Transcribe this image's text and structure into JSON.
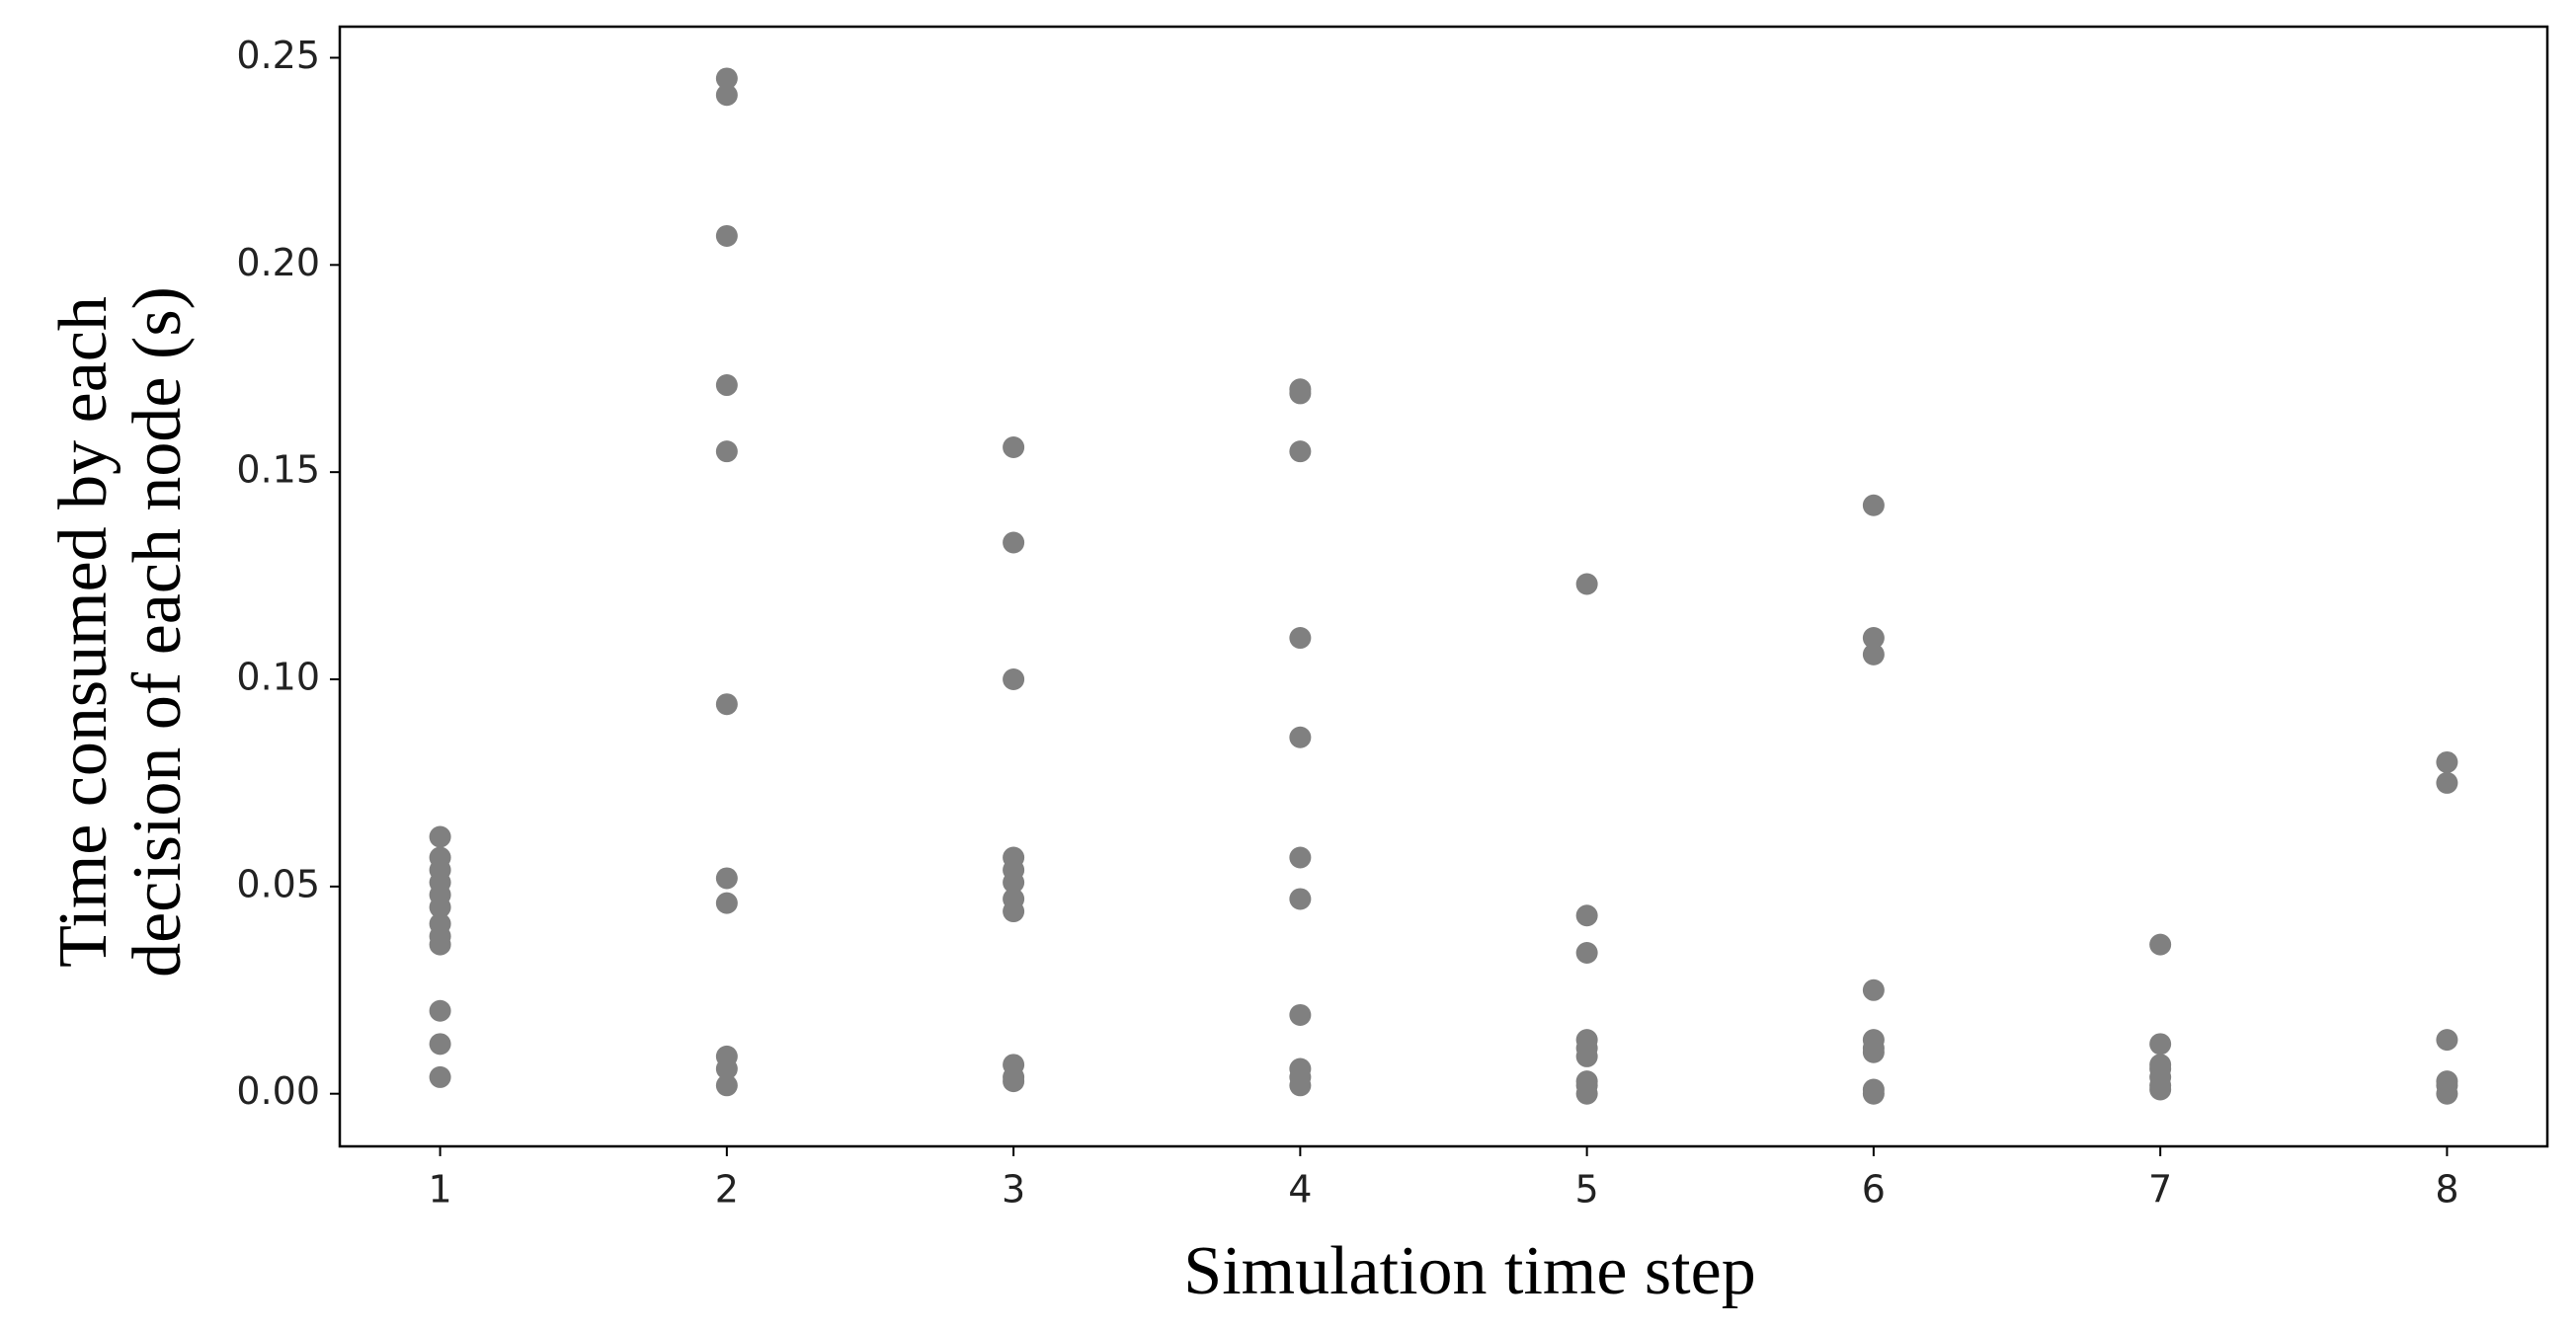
{
  "chart_data": {
    "type": "scatter",
    "xlabel": "Simulation time step",
    "ylabel": [
      "Time consumed by each",
      "decision of each node (s)"
    ],
    "color": "#808080",
    "xlim": [
      0.65,
      8.35
    ],
    "ylim": [
      -0.0127,
      0.2575
    ],
    "xticks": [
      1,
      2,
      3,
      4,
      5,
      6,
      7,
      8
    ],
    "yticks": [
      {
        "value": 0,
        "label": "0.00"
      },
      {
        "value": 0.05,
        "label": "0.05"
      },
      {
        "value": 0.1,
        "label": "0.10"
      },
      {
        "value": 0.15,
        "label": "0.15"
      },
      {
        "value": 0.2,
        "label": "0.20"
      },
      {
        "value": 0.25,
        "label": "0.25"
      }
    ],
    "x": [
      1,
      1,
      1,
      1,
      1,
      1,
      1,
      1,
      1,
      1,
      1,
      1,
      2,
      2,
      2,
      2,
      2,
      2,
      2,
      2,
      2,
      2,
      2,
      3,
      3,
      3,
      3,
      3,
      3,
      3,
      3,
      3,
      3,
      3,
      4,
      4,
      4,
      4,
      4,
      4,
      4,
      4,
      4,
      4,
      4,
      5,
      5,
      5,
      5,
      5,
      5,
      5,
      5,
      5,
      6,
      6,
      6,
      6,
      6,
      6,
      6,
      6,
      6,
      7,
      7,
      7,
      7,
      7,
      7,
      7,
      8,
      8,
      8,
      8,
      8,
      8
    ],
    "values": [
      0.062,
      0.057,
      0.054,
      0.051,
      0.048,
      0.045,
      0.041,
      0.038,
      0.036,
      0.02,
      0.012,
      0.004,
      0.245,
      0.241,
      0.207,
      0.171,
      0.155,
      0.094,
      0.052,
      0.046,
      0.009,
      0.006,
      0.002,
      0.156,
      0.133,
      0.1,
      0.057,
      0.054,
      0.051,
      0.047,
      0.044,
      0.007,
      0.004,
      0.003,
      0.17,
      0.169,
      0.155,
      0.11,
      0.086,
      0.057,
      0.047,
      0.019,
      0.006,
      0.004,
      0.002,
      0.123,
      0.043,
      0.034,
      0.013,
      0.011,
      0.009,
      0.003,
      0.002,
      0.0,
      0.142,
      0.11,
      0.106,
      0.025,
      0.013,
      0.011,
      0.01,
      0.001,
      0.0,
      0.036,
      0.012,
      0.007,
      0.006,
      0.004,
      0.002,
      0.001,
      0.08,
      0.075,
      0.013,
      0.003,
      0.002,
      0.0
    ]
  }
}
